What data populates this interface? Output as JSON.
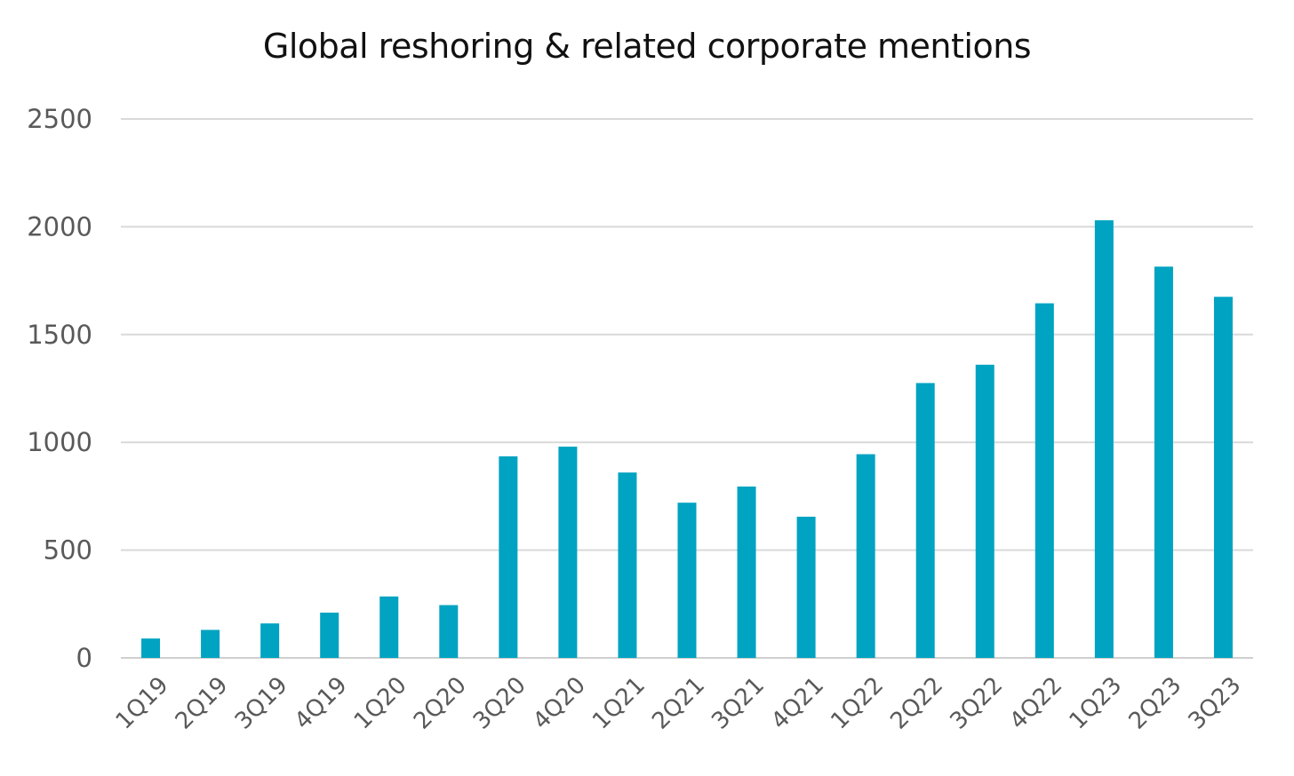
{
  "chart_data": {
    "type": "bar",
    "title": "Global reshoring & related corporate mentions",
    "xlabel": "",
    "ylabel": "",
    "categories": [
      "1Q19",
      "2Q19",
      "3Q19",
      "4Q19",
      "1Q20",
      "2Q20",
      "3Q20",
      "4Q20",
      "1Q21",
      "2Q21",
      "3Q21",
      "4Q21",
      "1Q22",
      "2Q22",
      "3Q22",
      "4Q22",
      "1Q23",
      "2Q23",
      "3Q23"
    ],
    "values": [
      90,
      130,
      160,
      210,
      285,
      245,
      935,
      980,
      860,
      720,
      795,
      655,
      945,
      1275,
      1360,
      1645,
      2030,
      1815,
      1675
    ],
    "ylim": [
      0,
      2500
    ],
    "yticks": [
      0,
      500,
      1000,
      1500,
      2000,
      2500
    ],
    "grid": true,
    "legend": "none",
    "bar_color": "#00a3c1"
  }
}
